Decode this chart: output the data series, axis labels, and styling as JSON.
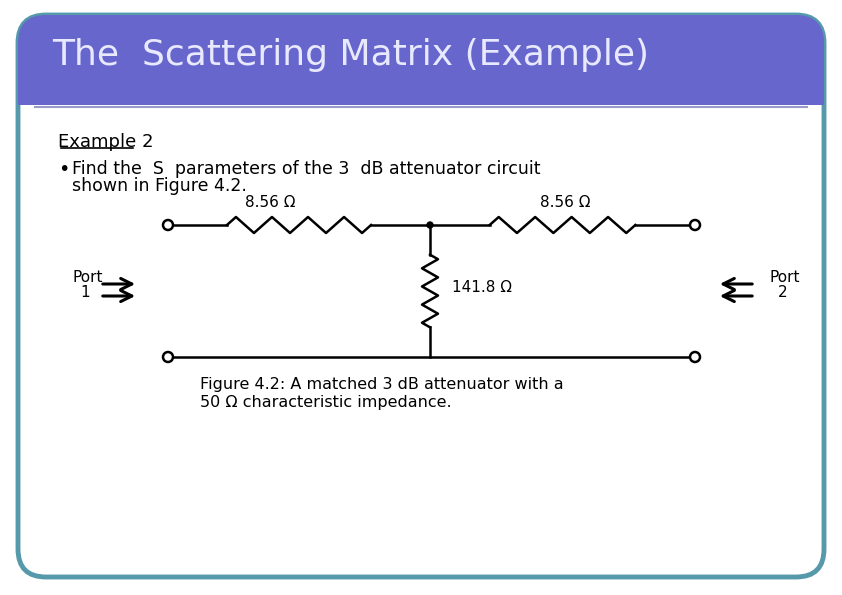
{
  "title": "The  Scattering Matrix (Example)",
  "title_color": "#E8E8FF",
  "title_bg_color": "#6666CC",
  "slide_bg_color": "#FFFFFF",
  "slide_border_color": "#5599AA",
  "example_label": "Example 2",
  "bullet_text_line1": "Find the  S  parameters of the 3  dB attenuator circuit",
  "bullet_text_line2": "shown in Figure 4.2.",
  "r1_label": "8.56 Ω",
  "r2_label": "8.56 Ω",
  "r3_label": "141.8 Ω",
  "port1_label": "Port\n1",
  "port2_label": "Port\n2",
  "fig_caption_line1": "Figure 4.2: A matched 3 dB attenuator with a",
  "fig_caption_line2": "50 Ω characteristic impedance.",
  "circuit_color": "#000000"
}
